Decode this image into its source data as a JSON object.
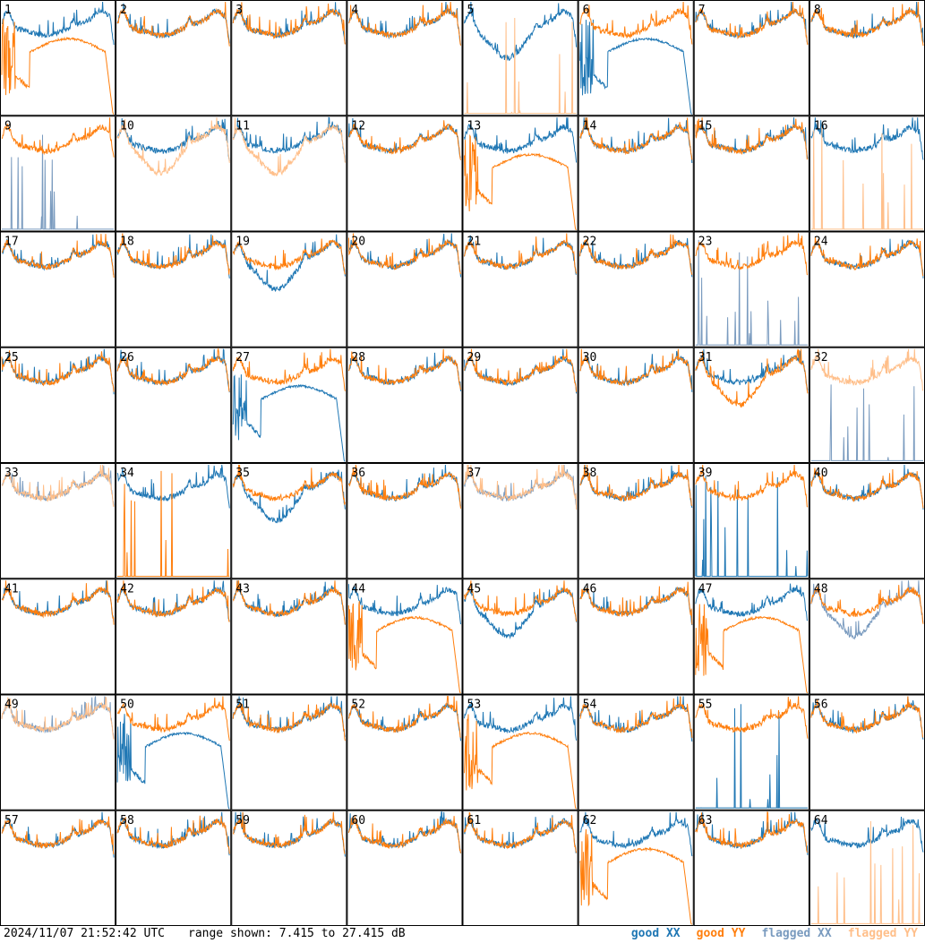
{
  "footer": {
    "timestamp": "2024/11/07 21:52:42 UTC",
    "range_text": "range shown: 7.415 to 27.415 dB"
  },
  "legend": [
    {
      "label": "good XX",
      "color": "#1f77b4"
    },
    {
      "label": "good YY",
      "color": "#ff7f0e"
    },
    {
      "label": "flagged XX",
      "color": "#7a9bbf"
    },
    {
      "label": "flagged YY",
      "color": "#ffbf8a"
    }
  ],
  "chart_data": {
    "type": "line",
    "title": "",
    "ylim": [
      7.415,
      27.415
    ],
    "grid_cols": 8,
    "grid_rows": 8,
    "panels": [
      {
        "id": "1",
        "xx": {
          "shape": "normal",
          "flag": false
        },
        "yy": {
          "shape": "dropout",
          "flag": false
        }
      },
      {
        "id": "2",
        "xx": {
          "shape": "normal",
          "flag": false
        },
        "yy": {
          "shape": "normal",
          "flag": false
        }
      },
      {
        "id": "3",
        "xx": {
          "shape": "normal",
          "flag": false
        },
        "yy": {
          "shape": "normal",
          "flag": false
        }
      },
      {
        "id": "4",
        "xx": {
          "shape": "normal",
          "flag": false
        },
        "yy": {
          "shape": "normal",
          "flag": false
        }
      },
      {
        "id": "5",
        "xx": {
          "shape": "dip",
          "flag": false
        },
        "yy": {
          "shape": "spikes",
          "flag": true
        }
      },
      {
        "id": "6",
        "xx": {
          "shape": "dropout",
          "flag": false
        },
        "yy": {
          "shape": "normal",
          "flag": false
        }
      },
      {
        "id": "7",
        "xx": {
          "shape": "normal",
          "flag": false
        },
        "yy": {
          "shape": "normal",
          "flag": false
        }
      },
      {
        "id": "8",
        "xx": {
          "shape": "normal",
          "flag": false
        },
        "yy": {
          "shape": "normal",
          "flag": false
        }
      },
      {
        "id": "9",
        "xx": {
          "shape": "spikes",
          "flag": true
        },
        "yy": {
          "shape": "normal",
          "flag": false
        }
      },
      {
        "id": "10",
        "xx": {
          "shape": "normal",
          "flag": false
        },
        "yy": {
          "shape": "dip",
          "flag": true
        }
      },
      {
        "id": "11",
        "xx": {
          "shape": "normal",
          "flag": false
        },
        "yy": {
          "shape": "dip",
          "flag": true
        }
      },
      {
        "id": "12",
        "xx": {
          "shape": "normal",
          "flag": false
        },
        "yy": {
          "shape": "normal",
          "flag": false
        }
      },
      {
        "id": "13",
        "xx": {
          "shape": "normal",
          "flag": false
        },
        "yy": {
          "shape": "dropout",
          "flag": false
        }
      },
      {
        "id": "14",
        "xx": {
          "shape": "normal",
          "flag": false
        },
        "yy": {
          "shape": "normal",
          "flag": false
        }
      },
      {
        "id": "15",
        "xx": {
          "shape": "normal",
          "flag": false
        },
        "yy": {
          "shape": "normal",
          "flag": false
        }
      },
      {
        "id": "16",
        "xx": {
          "shape": "normal",
          "flag": false
        },
        "yy": {
          "shape": "spikes",
          "flag": true
        }
      },
      {
        "id": "17",
        "xx": {
          "shape": "normal",
          "flag": false
        },
        "yy": {
          "shape": "normal",
          "flag": false
        }
      },
      {
        "id": "18",
        "xx": {
          "shape": "normal",
          "flag": false
        },
        "yy": {
          "shape": "normal",
          "flag": false
        }
      },
      {
        "id": "19",
        "xx": {
          "shape": "dip",
          "flag": false
        },
        "yy": {
          "shape": "normal",
          "flag": false
        }
      },
      {
        "id": "20",
        "xx": {
          "shape": "normal",
          "flag": false
        },
        "yy": {
          "shape": "normal",
          "flag": false
        }
      },
      {
        "id": "21",
        "xx": {
          "shape": "normal",
          "flag": false
        },
        "yy": {
          "shape": "normal",
          "flag": false
        }
      },
      {
        "id": "22",
        "xx": {
          "shape": "normal",
          "flag": false
        },
        "yy": {
          "shape": "normal",
          "flag": false
        }
      },
      {
        "id": "23",
        "xx": {
          "shape": "spikes",
          "flag": true
        },
        "yy": {
          "shape": "normal",
          "flag": false
        }
      },
      {
        "id": "24",
        "xx": {
          "shape": "normal",
          "flag": false
        },
        "yy": {
          "shape": "normal",
          "flag": false
        }
      },
      {
        "id": "25",
        "xx": {
          "shape": "normal",
          "flag": false
        },
        "yy": {
          "shape": "normal",
          "flag": false
        }
      },
      {
        "id": "26",
        "xx": {
          "shape": "normal",
          "flag": false
        },
        "yy": {
          "shape": "normal",
          "flag": false
        }
      },
      {
        "id": "27",
        "xx": {
          "shape": "dropout",
          "flag": false
        },
        "yy": {
          "shape": "normal",
          "flag": false
        }
      },
      {
        "id": "28",
        "xx": {
          "shape": "normal",
          "flag": false
        },
        "yy": {
          "shape": "normal",
          "flag": false
        }
      },
      {
        "id": "29",
        "xx": {
          "shape": "normal",
          "flag": false
        },
        "yy": {
          "shape": "normal",
          "flag": false
        }
      },
      {
        "id": "30",
        "xx": {
          "shape": "normal",
          "flag": false
        },
        "yy": {
          "shape": "normal",
          "flag": false
        }
      },
      {
        "id": "31",
        "xx": {
          "shape": "normal",
          "flag": false
        },
        "yy": {
          "shape": "dip",
          "flag": false
        }
      },
      {
        "id": "32",
        "xx": {
          "shape": "spikes",
          "flag": true
        },
        "yy": {
          "shape": "normal",
          "flag": true
        }
      },
      {
        "id": "33",
        "xx": {
          "shape": "normal",
          "flag": true
        },
        "yy": {
          "shape": "normal",
          "flag": true
        }
      },
      {
        "id": "34",
        "xx": {
          "shape": "normal",
          "flag": false
        },
        "yy": {
          "shape": "spikes",
          "flag": false
        }
      },
      {
        "id": "35",
        "xx": {
          "shape": "dip",
          "flag": false
        },
        "yy": {
          "shape": "normal",
          "flag": false
        }
      },
      {
        "id": "36",
        "xx": {
          "shape": "normal",
          "flag": false
        },
        "yy": {
          "shape": "normal",
          "flag": false
        }
      },
      {
        "id": "37",
        "xx": {
          "shape": "normal",
          "flag": true
        },
        "yy": {
          "shape": "normal",
          "flag": true
        }
      },
      {
        "id": "38",
        "xx": {
          "shape": "normal",
          "flag": false
        },
        "yy": {
          "shape": "normal",
          "flag": false
        }
      },
      {
        "id": "39",
        "xx": {
          "shape": "spikes",
          "flag": false
        },
        "yy": {
          "shape": "normal",
          "flag": false
        }
      },
      {
        "id": "40",
        "xx": {
          "shape": "normal",
          "flag": false
        },
        "yy": {
          "shape": "normal",
          "flag": false
        }
      },
      {
        "id": "41",
        "xx": {
          "shape": "normal",
          "flag": false
        },
        "yy": {
          "shape": "normal",
          "flag": false
        }
      },
      {
        "id": "42",
        "xx": {
          "shape": "normal",
          "flag": false
        },
        "yy": {
          "shape": "normal",
          "flag": false
        }
      },
      {
        "id": "43",
        "xx": {
          "shape": "normal",
          "flag": false
        },
        "yy": {
          "shape": "normal",
          "flag": false
        }
      },
      {
        "id": "44",
        "xx": {
          "shape": "normal",
          "flag": false
        },
        "yy": {
          "shape": "dropout",
          "flag": false
        }
      },
      {
        "id": "45",
        "xx": {
          "shape": "dip",
          "flag": false
        },
        "yy": {
          "shape": "normal",
          "flag": false
        }
      },
      {
        "id": "46",
        "xx": {
          "shape": "normal",
          "flag": false
        },
        "yy": {
          "shape": "normal",
          "flag": false
        }
      },
      {
        "id": "47",
        "xx": {
          "shape": "normal",
          "flag": false
        },
        "yy": {
          "shape": "dropout",
          "flag": false
        }
      },
      {
        "id": "48",
        "xx": {
          "shape": "dip",
          "flag": true
        },
        "yy": {
          "shape": "normal",
          "flag": false
        }
      },
      {
        "id": "49",
        "xx": {
          "shape": "normal",
          "flag": true
        },
        "yy": {
          "shape": "normal",
          "flag": true
        }
      },
      {
        "id": "50",
        "xx": {
          "shape": "dropout",
          "flag": false
        },
        "yy": {
          "shape": "normal",
          "flag": false
        }
      },
      {
        "id": "51",
        "xx": {
          "shape": "normal",
          "flag": false
        },
        "yy": {
          "shape": "normal",
          "flag": false
        }
      },
      {
        "id": "52",
        "xx": {
          "shape": "normal",
          "flag": false
        },
        "yy": {
          "shape": "normal",
          "flag": false
        }
      },
      {
        "id": "53",
        "xx": {
          "shape": "normal",
          "flag": false
        },
        "yy": {
          "shape": "dropout",
          "flag": false
        }
      },
      {
        "id": "54",
        "xx": {
          "shape": "normal",
          "flag": false
        },
        "yy": {
          "shape": "normal",
          "flag": false
        }
      },
      {
        "id": "55",
        "xx": {
          "shape": "spikes",
          "flag": false
        },
        "yy": {
          "shape": "normal",
          "flag": false
        }
      },
      {
        "id": "56",
        "xx": {
          "shape": "normal",
          "flag": false
        },
        "yy": {
          "shape": "normal",
          "flag": false
        }
      },
      {
        "id": "57",
        "xx": {
          "shape": "normal",
          "flag": false
        },
        "yy": {
          "shape": "normal",
          "flag": false
        }
      },
      {
        "id": "58",
        "xx": {
          "shape": "normal",
          "flag": false
        },
        "yy": {
          "shape": "normal",
          "flag": false
        }
      },
      {
        "id": "59",
        "xx": {
          "shape": "normal",
          "flag": false
        },
        "yy": {
          "shape": "normal",
          "flag": false
        }
      },
      {
        "id": "60",
        "xx": {
          "shape": "normal",
          "flag": false
        },
        "yy": {
          "shape": "normal",
          "flag": false
        }
      },
      {
        "id": "61",
        "xx": {
          "shape": "normal",
          "flag": false
        },
        "yy": {
          "shape": "normal",
          "flag": false
        }
      },
      {
        "id": "62",
        "xx": {
          "shape": "normal",
          "flag": false
        },
        "yy": {
          "shape": "dropout",
          "flag": false
        }
      },
      {
        "id": "63",
        "xx": {
          "shape": "normal",
          "flag": false
        },
        "yy": {
          "shape": "normal",
          "flag": false
        }
      },
      {
        "id": "64",
        "xx": {
          "shape": "normal",
          "flag": false
        },
        "yy": {
          "shape": "spikes",
          "flag": true
        }
      }
    ]
  }
}
